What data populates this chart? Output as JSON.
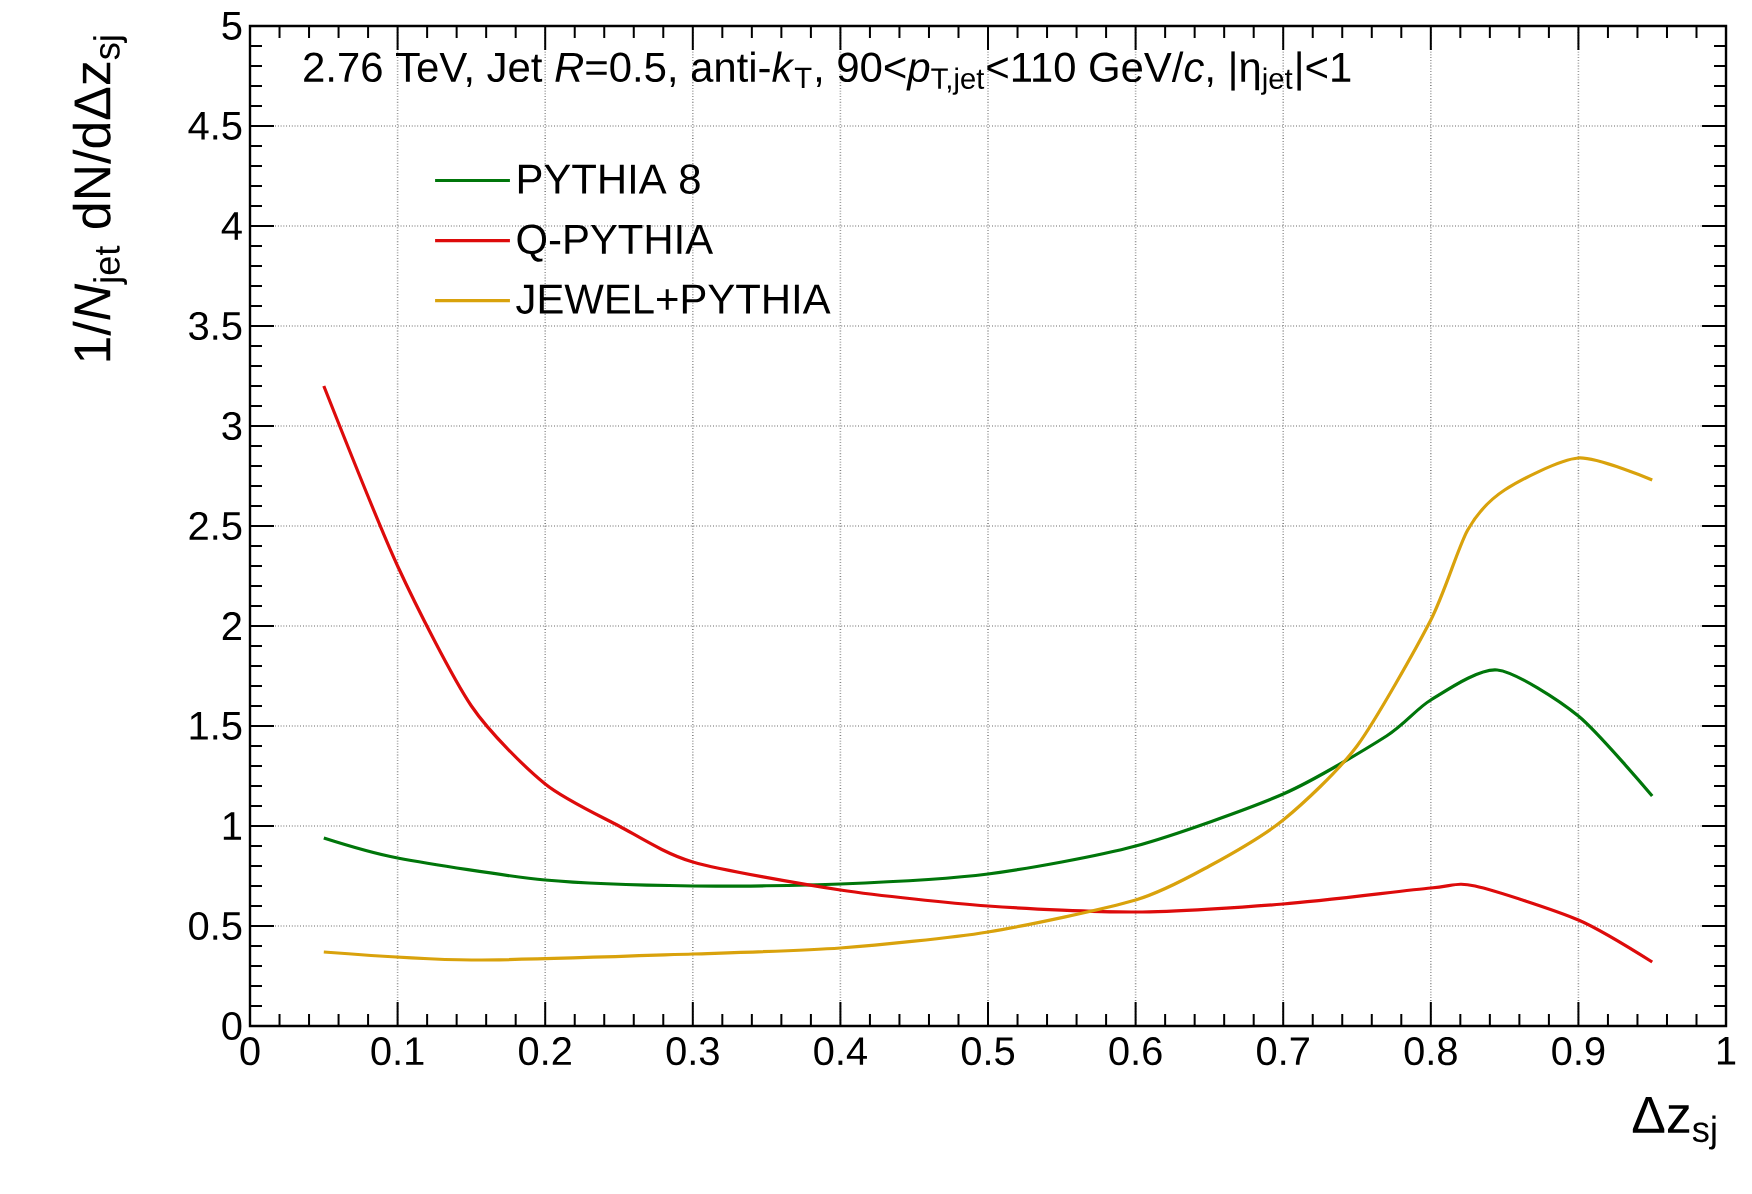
{
  "chart_data": {
    "type": "line",
    "title": "2.76 TeV, Jet *R*=0.5, anti-*k*$_{T}$, 90<*p*$_{T,jet}$<110 GeV/*c*, |η$_{jet}$|<1",
    "xlabel": "Δz$_{sj}$",
    "ylabel": "1/*N*$_{jet}$ dN/dΔz$_{sj}$",
    "xlim": [
      0,
      1
    ],
    "ylim": [
      0,
      5
    ],
    "xticks": [
      0,
      0.1,
      0.2,
      0.3,
      0.4,
      0.5,
      0.6,
      0.7,
      0.8,
      0.9,
      1
    ],
    "yticks": [
      0,
      0.5,
      1,
      1.5,
      2,
      2.5,
      3,
      3.5,
      4,
      4.5,
      5
    ],
    "grid": true,
    "legend": "top left",
    "line_style": "solid",
    "marker": "none",
    "series": [
      {
        "name": "PYTHIA 8",
        "color": "#00760a",
        "x": [
          0.05,
          0.1,
          0.2,
          0.3,
          0.4,
          0.5,
          0.6,
          0.7,
          0.77,
          0.8,
          0.845,
          0.9,
          0.95
        ],
        "values": [
          0.94,
          0.84,
          0.73,
          0.7,
          0.71,
          0.76,
          0.9,
          1.16,
          1.45,
          1.63,
          1.78,
          1.55,
          1.15
        ]
      },
      {
        "name": "Q-PYTHIA",
        "color": "#dd0b0b",
        "x": [
          0.05,
          0.1,
          0.15,
          0.2,
          0.25,
          0.3,
          0.4,
          0.5,
          0.6,
          0.7,
          0.8,
          0.83,
          0.9,
          0.95
        ],
        "values": [
          3.2,
          2.3,
          1.6,
          1.21,
          1.0,
          0.82,
          0.68,
          0.6,
          0.57,
          0.61,
          0.69,
          0.7,
          0.53,
          0.32
        ]
      },
      {
        "name": "JEWEL+PYTHIA",
        "color": "#d9a20c",
        "x": [
          0.05,
          0.15,
          0.3,
          0.4,
          0.5,
          0.6,
          0.65,
          0.7,
          0.75,
          0.8,
          0.825,
          0.85,
          0.9,
          0.95
        ],
        "values": [
          0.37,
          0.33,
          0.36,
          0.39,
          0.47,
          0.63,
          0.8,
          1.03,
          1.4,
          2.03,
          2.48,
          2.68,
          2.84,
          2.73
        ]
      }
    ]
  }
}
